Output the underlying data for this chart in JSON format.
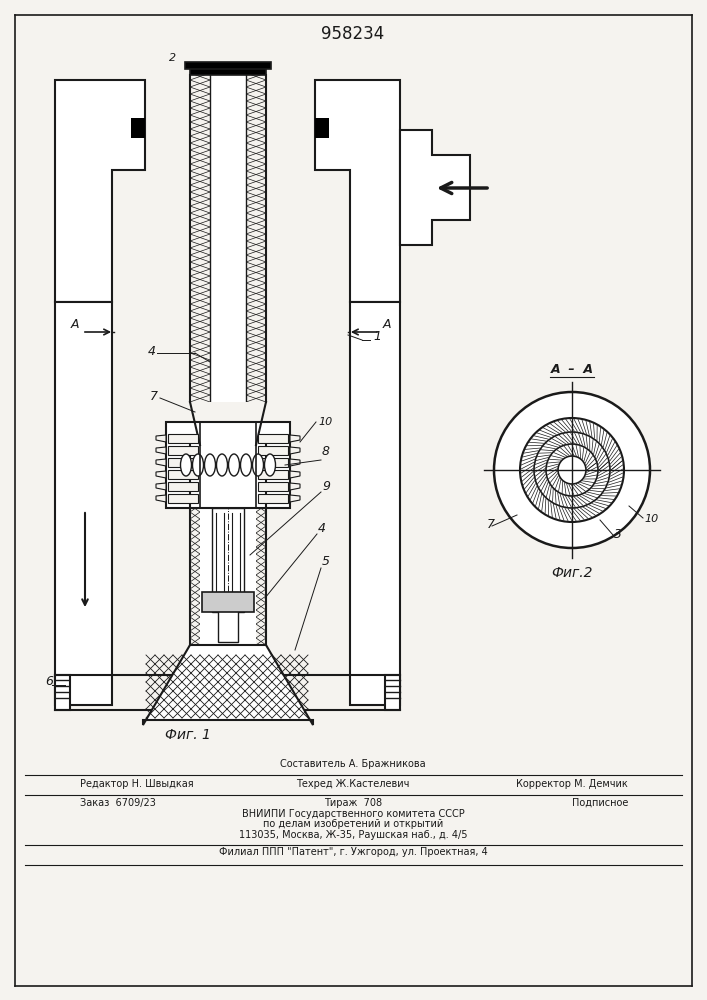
{
  "title": "958234",
  "fig1_label": "Фиг. 1",
  "fig2_label": "Фиг.2",
  "bg_color": "#f5f3ef",
  "line_color": "#1a1a1a",
  "footer": {
    "comp": "Составитель А. Бражникова",
    "line1_left": "Редактор Н. Швыдкая",
    "line1_mid": "Техред Ж.Кастелевич",
    "line1_right": "Корректор М. Демчик",
    "line2_left": "Заказ  6709/23",
    "line2_mid": "Тираж  708",
    "line2_right": "Подписное",
    "line3": "ВНИИПИ Государственного комитета СССР",
    "line4": "по делам изобретений и открытий",
    "line5": "113035, Москва, Ж-35, Раушская наб., д. 4/5",
    "line6": "Филиал ППП \"Патент\", г. Ужгород, ул. Проектная, 4"
  }
}
